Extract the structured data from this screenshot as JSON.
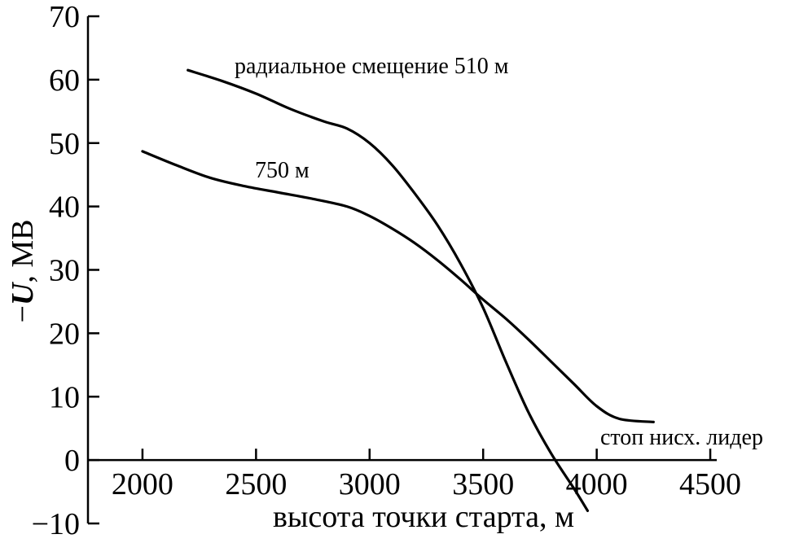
{
  "chart_data": {
    "type": "line",
    "title": "",
    "xlabel": "высота точки старта, м",
    "ylabel_prefix": "−",
    "ylabel_var": "U",
    "ylabel_unit": ", МВ",
    "xlim": [
      1760,
      4550
    ],
    "ylim": [
      -10,
      70
    ],
    "x_ticks": [
      2000,
      2500,
      3000,
      3500,
      4000,
      4500
    ],
    "y_ticks": [
      -10,
      0,
      10,
      20,
      30,
      40,
      50,
      60,
      70
    ],
    "x_tick_labels": [
      "2000",
      "2500",
      "3000",
      "3500",
      "4000",
      "4500"
    ],
    "y_tick_labels": [
      "−10",
      "0",
      "10",
      "20",
      "30",
      "40",
      "50",
      "60",
      "70"
    ],
    "grid": false,
    "series": [
      {
        "name": "",
        "annotation": "радиальное смещение 510 м",
        "x": [
          2200,
          2350,
          2500,
          2650,
          2800,
          2900,
          3000,
          3100,
          3200,
          3300,
          3400,
          3500,
          3600,
          3700,
          3800,
          3900,
          3960
        ],
        "y": [
          61.5,
          59.8,
          57.8,
          55.4,
          53.4,
          52.3,
          50.0,
          46.5,
          42.0,
          37.0,
          31.0,
          24.0,
          15.5,
          7.5,
          1.0,
          -4.5,
          -8.0
        ]
      },
      {
        "name": "",
        "annotation": "750 м",
        "x": [
          2000,
          2150,
          2300,
          2450,
          2600,
          2750,
          2900,
          3000,
          3100,
          3200,
          3300,
          3400,
          3500,
          3600,
          3700,
          3800,
          3900,
          4000,
          4100,
          4250
        ],
        "y": [
          48.7,
          46.5,
          44.5,
          43.2,
          42.2,
          41.2,
          40.0,
          38.5,
          36.5,
          34.2,
          31.5,
          28.5,
          25.3,
          22.3,
          19.0,
          15.5,
          12.0,
          8.5,
          6.5,
          6.0
        ]
      }
    ],
    "annotations": [
      {
        "text": "стоп нисх. лидер"
      }
    ]
  }
}
